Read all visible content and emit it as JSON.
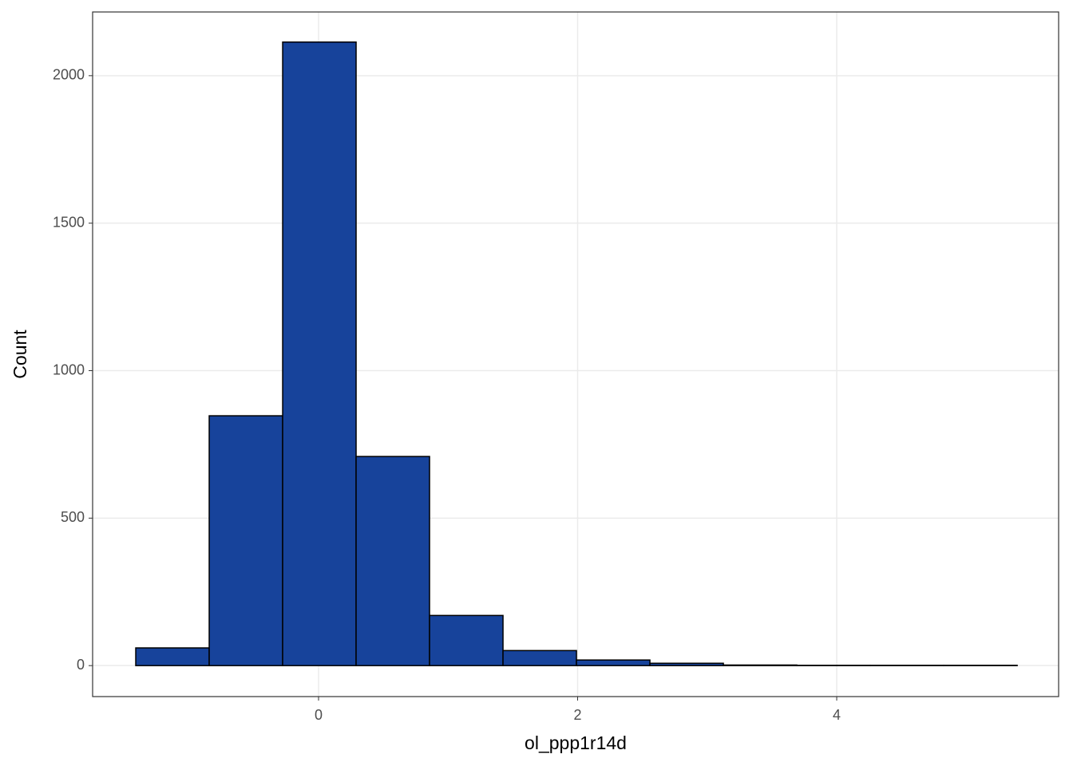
{
  "chart_data": {
    "type": "histogram",
    "x_label": "ol_ppp1r14d",
    "y_label": "Count",
    "bins": [
      -1.411,
      -0.844,
      -0.277,
      0.29,
      0.857,
      1.424,
      1.991,
      2.558,
      3.125,
      3.692,
      4.259,
      4.826,
      5.393
    ],
    "values": [
      60,
      847,
      2114,
      709,
      170,
      51,
      19,
      8,
      2,
      1,
      1,
      1
    ],
    "color": "#17439b",
    "edgecolor": "#000000",
    "xlim": [
      -1.744,
      5.713
    ],
    "xticks": [
      0,
      2,
      4
    ],
    "ylim": [
      -105,
      2216
    ],
    "yticks": [
      0,
      500,
      1000,
      1500,
      2000
    ],
    "grid": true
  }
}
